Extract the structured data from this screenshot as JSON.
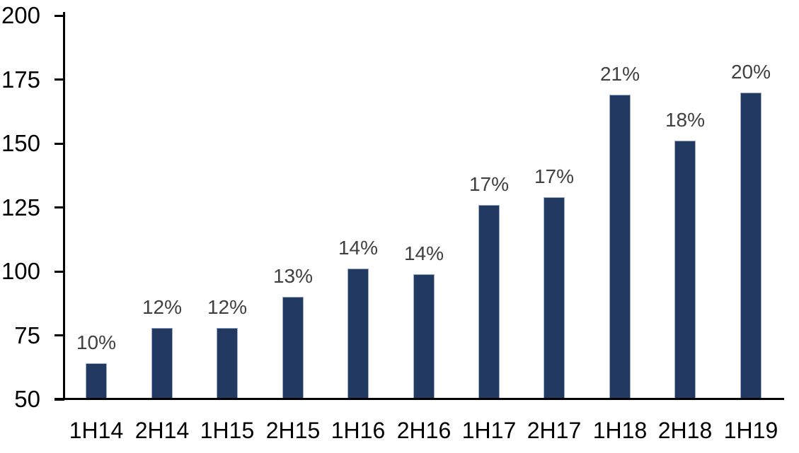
{
  "chart_data": {
    "type": "bar",
    "categories": [
      "1H14",
      "2H14",
      "1H15",
      "2H15",
      "1H16",
      "2H16",
      "1H17",
      "2H17",
      "1H18",
      "2H18",
      "1H19"
    ],
    "values": [
      64,
      78,
      78,
      90,
      101,
      99,
      126,
      129,
      169,
      151,
      170
    ],
    "bar_labels": [
      "10%",
      "12%",
      "12%",
      "13%",
      "14%",
      "14%",
      "17%",
      "17%",
      "21%",
      "18%",
      "20%"
    ],
    "title": "",
    "xlabel": "",
    "ylabel": "",
    "ylim": [
      50,
      200
    ],
    "yticks": [
      50,
      75,
      100,
      125,
      150,
      175,
      200
    ],
    "grid": false,
    "legend": "none",
    "colors": {
      "bar_fill": "#223962",
      "bar_edge": "#9aaac8",
      "data_label": "#404040",
      "axis_line": "#000000",
      "tick_label": "#000000",
      "background": "#ffffff"
    }
  }
}
